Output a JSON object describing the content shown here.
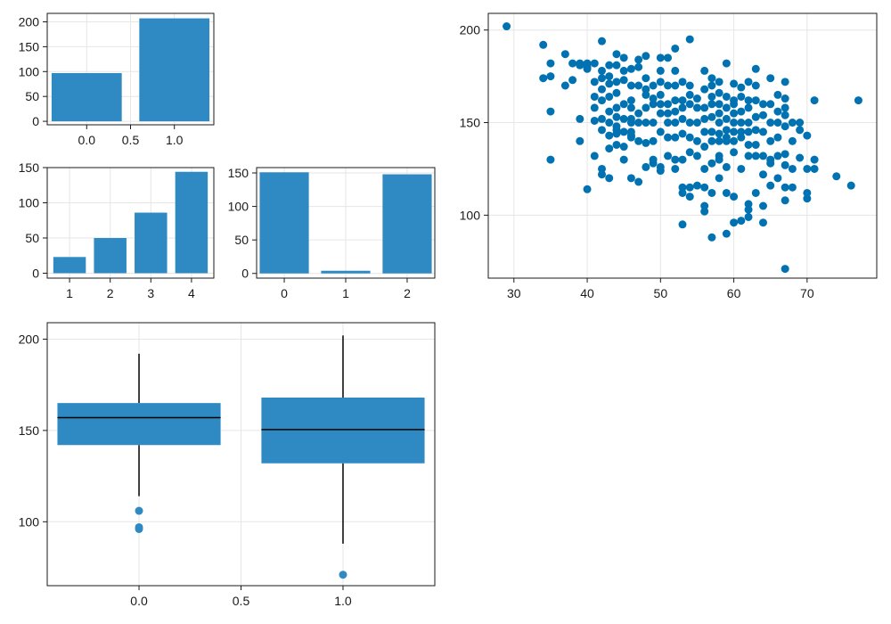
{
  "colors": {
    "bar": "#2f8ac4",
    "point": "#0072b2",
    "median": "#000000",
    "whisker": "#000000"
  },
  "chart_data": [
    {
      "type": "bar",
      "title": "",
      "x": [
        0,
        1
      ],
      "values": [
        97,
        207
      ],
      "bar_width": 0.8,
      "xlim": [
        -0.45,
        1.45
      ],
      "ylim": [
        -7,
        217
      ],
      "xticks": [
        0,
        0.5,
        1
      ],
      "xticklabels": [
        "0.0",
        "0.5",
        "1.0"
      ],
      "yticks": [
        0,
        50,
        100,
        150,
        200
      ],
      "yticklabels": [
        "0",
        "50",
        "100",
        "150",
        "200"
      ],
      "grid": true
    },
    {
      "type": "bar",
      "title": "",
      "x": [
        1,
        2,
        3,
        4
      ],
      "values": [
        23,
        50,
        86,
        144
      ],
      "bar_width": 0.8,
      "xlim": [
        0.45,
        4.55
      ],
      "ylim": [
        -7,
        150
      ],
      "xticks": [
        1,
        2,
        3,
        4
      ],
      "xticklabels": [
        "1",
        "2",
        "3",
        "4"
      ],
      "yticks": [
        0,
        50,
        100,
        150
      ],
      "yticklabels": [
        "0",
        "50",
        "100",
        "150"
      ],
      "grid": true
    },
    {
      "type": "bar",
      "title": "",
      "x": [
        0,
        1,
        2
      ],
      "values": [
        151,
        4,
        148
      ],
      "bar_width": 0.8,
      "xlim": [
        -0.45,
        2.45
      ],
      "ylim": [
        -7,
        158
      ],
      "xticks": [
        0,
        1,
        2
      ],
      "xticklabels": [
        "0",
        "1",
        "2"
      ],
      "yticks": [
        0,
        50,
        100,
        150
      ],
      "yticklabels": [
        "0",
        "50",
        "100",
        "150"
      ],
      "grid": true
    },
    {
      "type": "scatter",
      "title": "",
      "xlim": [
        26.5,
        79.5
      ],
      "ylim": [
        66,
        209
      ],
      "xticks": [
        30,
        40,
        50,
        60,
        70
      ],
      "xticklabels": [
        "30",
        "40",
        "50",
        "60",
        "70"
      ],
      "yticks": [
        100,
        150,
        200
      ],
      "yticklabels": [
        "100",
        "150",
        "200"
      ],
      "grid": true,
      "points": [
        [
          29,
          202
        ],
        [
          34,
          192
        ],
        [
          34,
          174
        ],
        [
          35,
          182
        ],
        [
          35,
          175
        ],
        [
          35,
          156
        ],
        [
          35,
          130
        ],
        [
          37,
          187
        ],
        [
          37,
          170
        ],
        [
          38,
          182
        ],
        [
          38,
          173
        ],
        [
          39,
          182
        ],
        [
          39,
          181
        ],
        [
          39,
          152
        ],
        [
          39,
          140
        ],
        [
          40,
          182
        ],
        [
          40,
          180
        ],
        [
          40,
          179
        ],
        [
          40,
          114
        ],
        [
          41,
          182
        ],
        [
          41,
          172
        ],
        [
          41,
          164
        ],
        [
          41,
          158
        ],
        [
          41,
          151
        ],
        [
          41,
          132
        ],
        [
          42,
          194
        ],
        [
          42,
          178
        ],
        [
          42,
          174
        ],
        [
          42,
          168
        ],
        [
          42,
          162
        ],
        [
          42,
          152
        ],
        [
          42,
          146
        ],
        [
          42,
          125
        ],
        [
          42,
          122
        ],
        [
          43,
          181
        ],
        [
          43,
          175
        ],
        [
          43,
          171
        ],
        [
          43,
          164
        ],
        [
          43,
          156
        ],
        [
          43,
          150
        ],
        [
          43,
          143
        ],
        [
          43,
          136
        ],
        [
          43,
          120
        ],
        [
          44,
          187
        ],
        [
          44,
          181
        ],
        [
          44,
          172
        ],
        [
          44,
          166
        ],
        [
          44,
          158
        ],
        [
          44,
          153
        ],
        [
          44,
          148
        ],
        [
          44,
          146
        ],
        [
          44,
          144
        ],
        [
          44,
          138
        ],
        [
          45,
          185
        ],
        [
          45,
          178
        ],
        [
          45,
          173
        ],
        [
          45,
          160
        ],
        [
          45,
          152
        ],
        [
          45,
          145
        ],
        [
          45,
          137
        ],
        [
          45,
          130
        ],
        [
          46,
          179
        ],
        [
          46,
          170
        ],
        [
          46,
          162
        ],
        [
          46,
          158
        ],
        [
          46,
          152
        ],
        [
          46,
          150
        ],
        [
          46,
          145
        ],
        [
          46,
          143
        ],
        [
          46,
          142
        ],
        [
          46,
          120
        ],
        [
          47,
          184
        ],
        [
          47,
          180
        ],
        [
          47,
          170
        ],
        [
          47,
          155
        ],
        [
          47,
          150
        ],
        [
          47,
          140
        ],
        [
          47,
          118
        ],
        [
          48,
          186
        ],
        [
          48,
          174
        ],
        [
          48,
          168
        ],
        [
          48,
          165
        ],
        [
          48,
          158
        ],
        [
          48,
          150
        ],
        [
          48,
          139
        ],
        [
          48,
          126
        ],
        [
          49,
          170
        ],
        [
          49,
          163
        ],
        [
          49,
          160
        ],
        [
          49,
          150
        ],
        [
          49,
          140
        ],
        [
          49,
          130
        ],
        [
          49,
          128
        ],
        [
          50,
          185
        ],
        [
          50,
          178
        ],
        [
          50,
          172
        ],
        [
          50,
          165
        ],
        [
          50,
          160
        ],
        [
          50,
          155
        ],
        [
          50,
          145
        ],
        [
          50,
          126
        ],
        [
          50,
          124
        ],
        [
          51,
          185
        ],
        [
          51,
          170
        ],
        [
          51,
          160
        ],
        [
          51,
          155
        ],
        [
          51,
          150
        ],
        [
          51,
          142
        ],
        [
          51,
          132
        ],
        [
          52,
          190
        ],
        [
          52,
          178
        ],
        [
          52,
          170
        ],
        [
          52,
          162
        ],
        [
          52,
          156
        ],
        [
          52,
          150
        ],
        [
          52,
          142
        ],
        [
          52,
          130
        ],
        [
          52,
          125
        ],
        [
          53,
          172
        ],
        [
          53,
          162
        ],
        [
          53,
          158
        ],
        [
          53,
          152
        ],
        [
          53,
          144
        ],
        [
          53,
          130
        ],
        [
          53,
          115
        ],
        [
          53,
          112
        ],
        [
          53,
          95
        ],
        [
          54,
          195
        ],
        [
          54,
          170
        ],
        [
          54,
          165
        ],
        [
          54,
          160
        ],
        [
          54,
          150
        ],
        [
          54,
          142
        ],
        [
          54,
          134
        ],
        [
          54,
          115
        ],
        [
          54,
          110
        ],
        [
          55,
          163
        ],
        [
          55,
          158
        ],
        [
          55,
          150
        ],
        [
          55,
          140
        ],
        [
          55,
          132
        ],
        [
          55,
          116
        ],
        [
          56,
          178
        ],
        [
          56,
          168
        ],
        [
          56,
          158
        ],
        [
          56,
          152
        ],
        [
          56,
          145
        ],
        [
          56,
          137
        ],
        [
          56,
          125
        ],
        [
          56,
          115
        ],
        [
          56,
          105
        ],
        [
          56,
          102
        ],
        [
          57,
          174
        ],
        [
          57,
          170
        ],
        [
          57,
          164
        ],
        [
          57,
          160
        ],
        [
          57,
          153
        ],
        [
          57,
          145
        ],
        [
          57,
          140
        ],
        [
          57,
          128
        ],
        [
          57,
          112
        ],
        [
          57,
          88
        ],
        [
          58,
          172
        ],
        [
          58,
          166
        ],
        [
          58,
          160
        ],
        [
          58,
          155
        ],
        [
          58,
          150
        ],
        [
          58,
          144
        ],
        [
          58,
          140
        ],
        [
          58,
          132
        ],
        [
          58,
          130
        ],
        [
          58,
          120
        ],
        [
          59,
          182
        ],
        [
          59,
          164
        ],
        [
          59,
          158
        ],
        [
          59,
          152
        ],
        [
          59,
          146
        ],
        [
          59,
          142
        ],
        [
          59,
          140
        ],
        [
          59,
          126
        ],
        [
          59,
          112
        ],
        [
          59,
          90
        ],
        [
          60,
          171
        ],
        [
          60,
          162
        ],
        [
          60,
          160
        ],
        [
          60,
          155
        ],
        [
          60,
          150
        ],
        [
          60,
          145
        ],
        [
          60,
          140
        ],
        [
          60,
          134
        ],
        [
          60,
          110
        ],
        [
          60,
          96
        ],
        [
          61,
          169
        ],
        [
          61,
          164
        ],
        [
          61,
          156
        ],
        [
          61,
          150
        ],
        [
          61,
          145
        ],
        [
          61,
          142
        ],
        [
          61,
          125
        ],
        [
          61,
          97
        ],
        [
          62,
          172
        ],
        [
          62,
          162
        ],
        [
          62,
          158
        ],
        [
          62,
          150
        ],
        [
          62,
          145
        ],
        [
          62,
          138
        ],
        [
          62,
          132
        ],
        [
          62,
          106
        ],
        [
          62,
          103
        ],
        [
          62,
          99
        ],
        [
          63,
          179
        ],
        [
          63,
          170
        ],
        [
          63,
          162
        ],
        [
          63,
          153
        ],
        [
          63,
          146
        ],
        [
          63,
          138
        ],
        [
          63,
          132
        ],
        [
          63,
          112
        ],
        [
          64,
          160
        ],
        [
          64,
          154
        ],
        [
          64,
          145
        ],
        [
          64,
          132
        ],
        [
          64,
          122
        ],
        [
          64,
          105
        ],
        [
          64,
          96
        ],
        [
          65,
          174
        ],
        [
          65,
          160
        ],
        [
          65,
          150
        ],
        [
          65,
          140
        ],
        [
          65,
          130
        ],
        [
          65,
          128
        ],
        [
          65,
          116
        ],
        [
          66,
          165
        ],
        [
          66,
          156
        ],
        [
          66,
          150
        ],
        [
          66,
          142
        ],
        [
          66,
          132
        ],
        [
          66,
          120
        ],
        [
          67,
          172
        ],
        [
          67,
          163
        ],
        [
          67,
          158
        ],
        [
          67,
          154
        ],
        [
          67,
          148
        ],
        [
          67,
          133
        ],
        [
          67,
          127
        ],
        [
          67,
          115
        ],
        [
          67,
          108
        ],
        [
          67,
          71
        ],
        [
          68,
          150
        ],
        [
          68,
          140
        ],
        [
          68,
          125
        ],
        [
          68,
          115
        ],
        [
          69,
          150
        ],
        [
          69,
          146
        ],
        [
          69,
          131
        ],
        [
          70,
          143
        ],
        [
          70,
          125
        ],
        [
          70,
          112
        ],
        [
          70,
          109
        ],
        [
          71,
          162
        ],
        [
          71,
          130
        ],
        [
          71,
          125
        ],
        [
          74,
          121
        ],
        [
          76,
          116
        ],
        [
          77,
          162
        ]
      ]
    },
    {
      "type": "boxplot",
      "title": "",
      "xlim": [
        -0.45,
        1.45
      ],
      "ylim": [
        65,
        209
      ],
      "xticks": [
        0,
        0.5,
        1
      ],
      "xticklabels": [
        "0.0",
        "0.5",
        "1.0"
      ],
      "yticks": [
        100,
        150,
        200
      ],
      "yticklabels": [
        "100",
        "150",
        "200"
      ],
      "grid": true,
      "box_width": 0.8,
      "boxes": [
        {
          "x": 0,
          "q1": 142,
          "median": 157,
          "q3": 165,
          "whisker_low": 114,
          "whisker_high": 192,
          "outliers": [
            106,
            97,
            96
          ]
        },
        {
          "x": 1,
          "q1": 132,
          "median": 150.5,
          "q3": 168,
          "whisker_low": 88,
          "whisker_high": 202,
          "outliers": [
            71
          ]
        }
      ]
    }
  ]
}
